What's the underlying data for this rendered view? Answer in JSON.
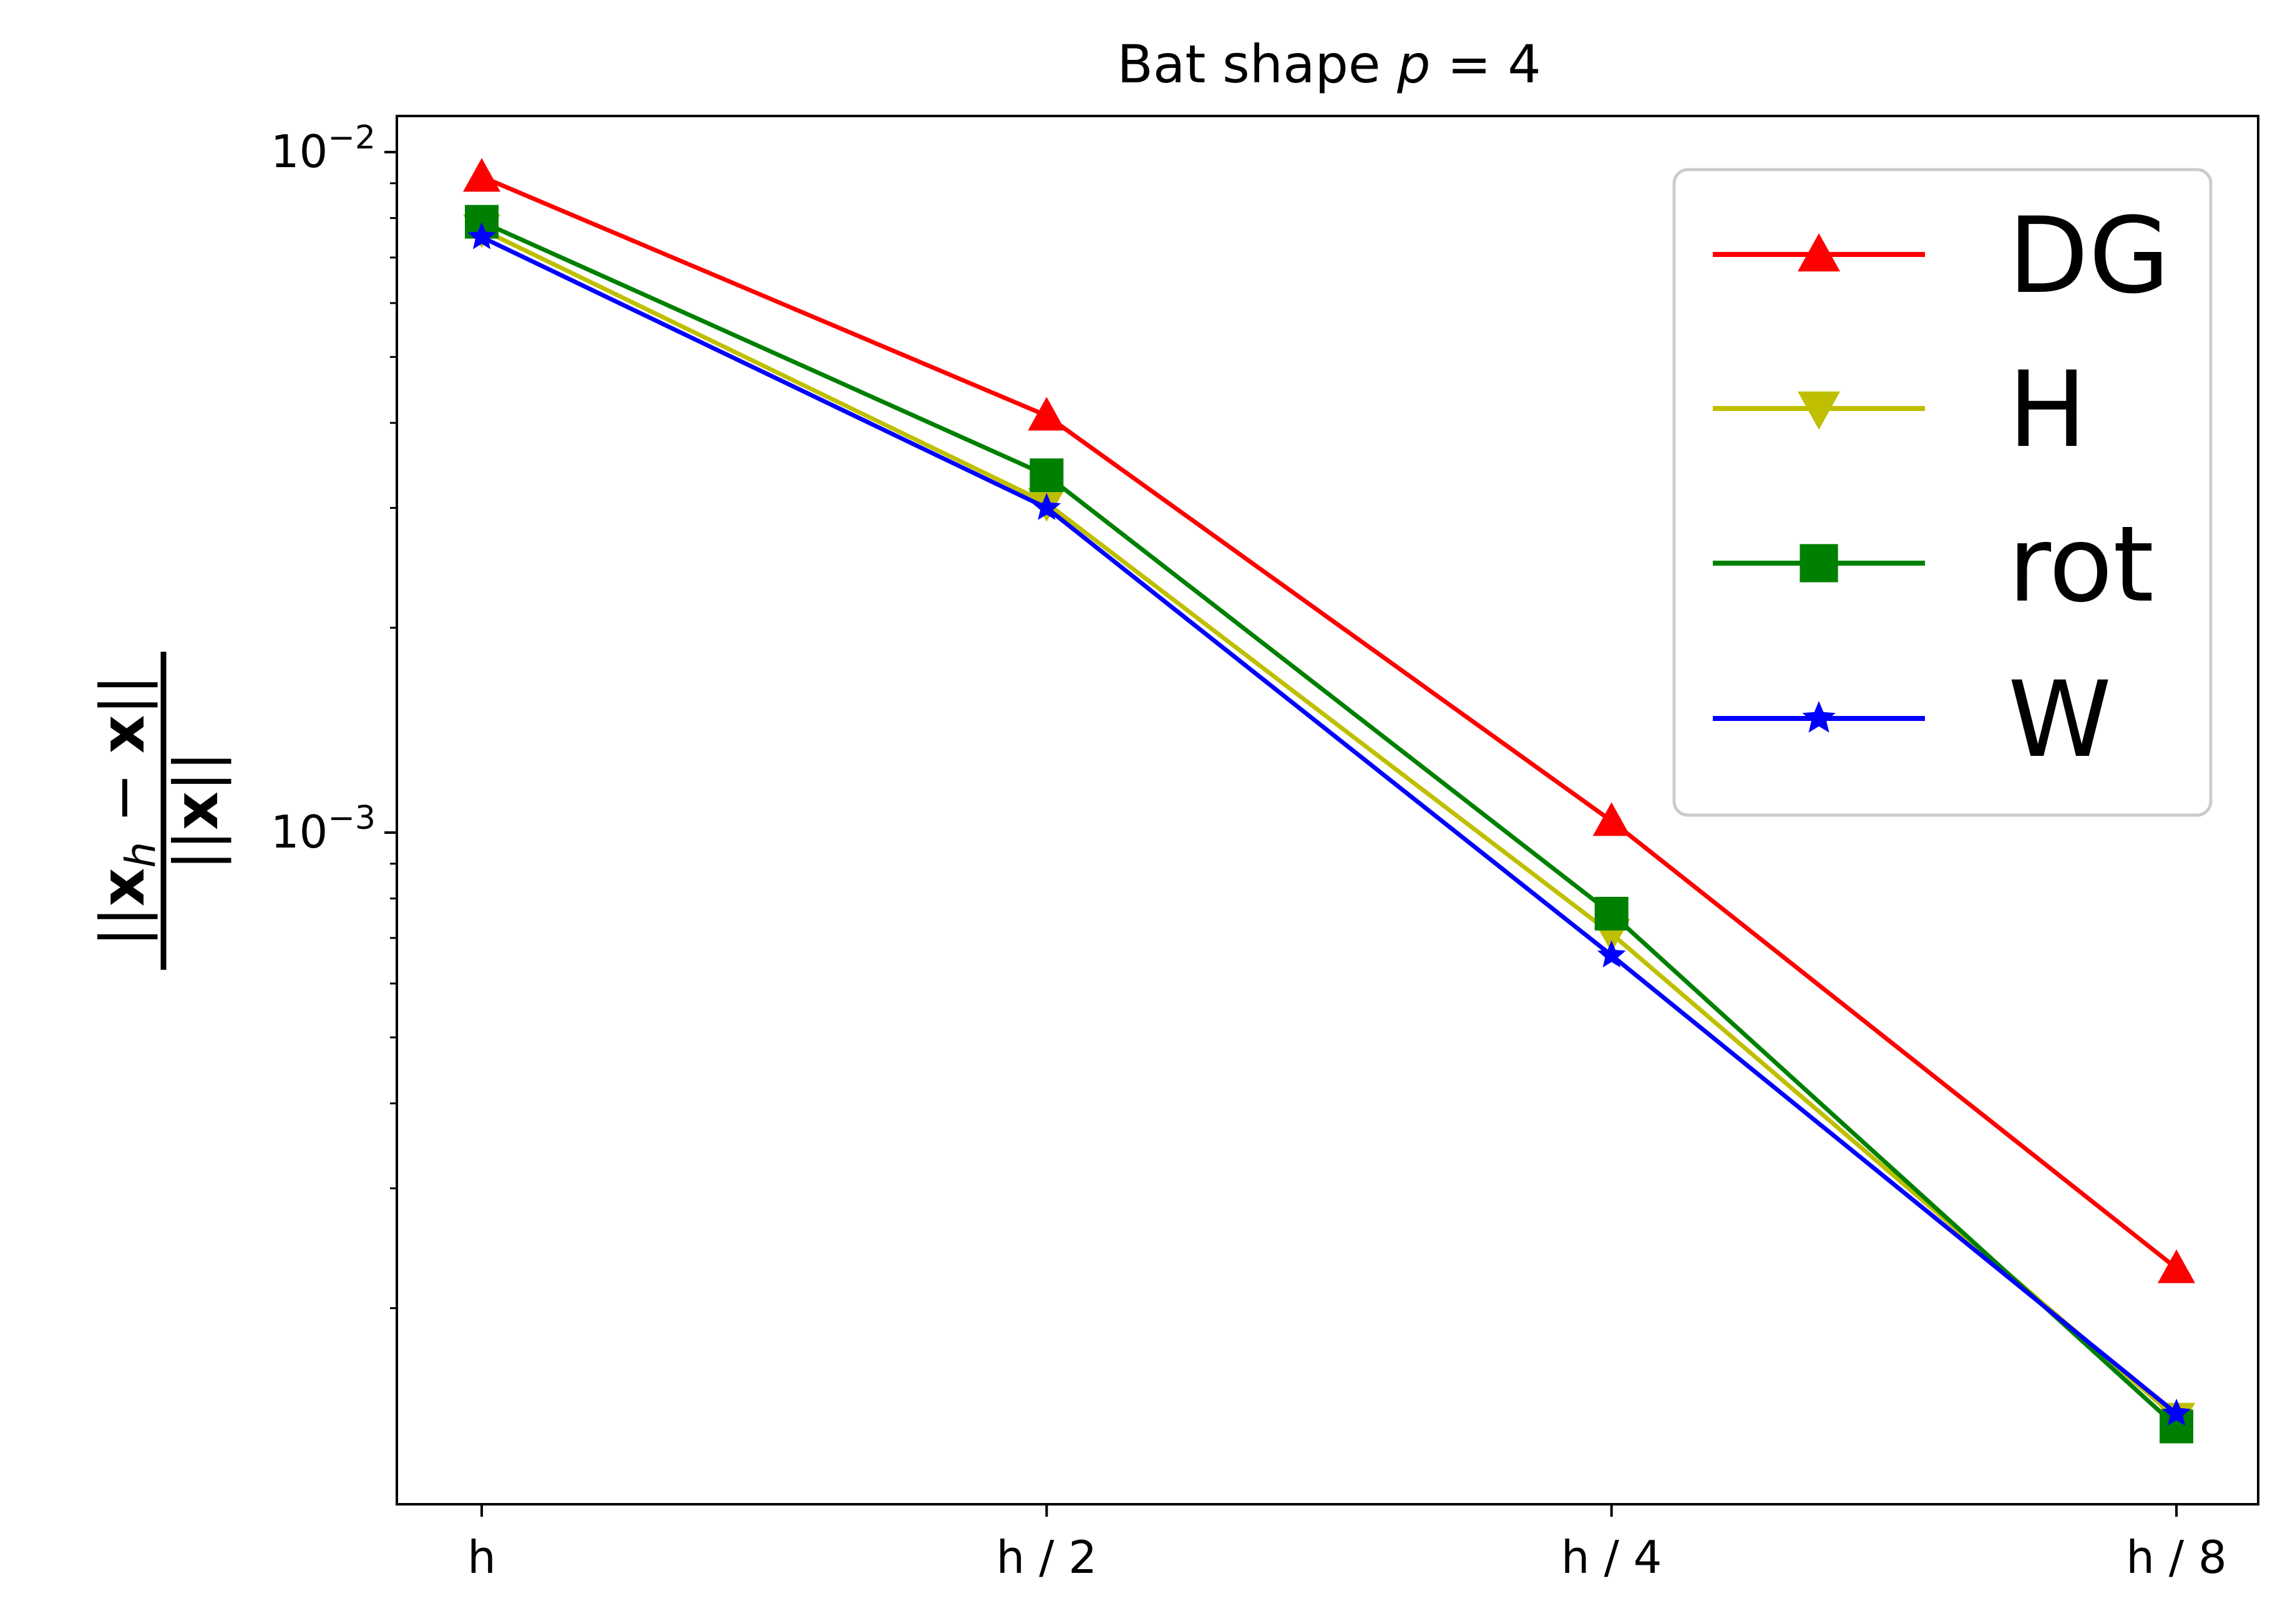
{
  "chart_data": {
    "type": "line",
    "title": "Bat shape p = 4",
    "title_parts": {
      "text": "Bat shape ",
      "var": "p",
      "rest": " = 4"
    },
    "ylabel": "||x_h − x|| / ||x||",
    "ylabel_parts": {
      "num_a": "||",
      "num_x": "x",
      "num_sub": "h",
      "num_b": " − ",
      "num_x2": "x",
      "num_c": "||",
      "den_a": "||",
      "den_x": "x",
      "den_b": "||"
    },
    "categories": [
      "h",
      "h / 2",
      "h / 4",
      "h / 8"
    ],
    "yscale": "log",
    "ylim": [
      0.000103,
      0.0113
    ],
    "ytick_labels": [
      {
        "base": "10",
        "exp": "−2",
        "value": 0.01
      },
      {
        "base": "10",
        "exp": "−3",
        "value": 0.001
      }
    ],
    "grid": false,
    "legend_position": "upper right",
    "series": [
      {
        "name": "DG",
        "color": "#ff0000",
        "marker": "triangle-up",
        "values": [
          0.0092,
          0.0041,
          0.00104,
          0.000229
        ]
      },
      {
        "name": "H",
        "color": "#bfbf00",
        "marker": "triangle-down",
        "values": [
          0.0077,
          0.00305,
          0.00071,
          0.000138
        ]
      },
      {
        "name": "rot",
        "color": "#008000",
        "marker": "square",
        "values": [
          0.0079,
          0.00335,
          0.00076,
          0.000134
        ]
      },
      {
        "name": "W",
        "color": "#0000ff",
        "marker": "star",
        "values": [
          0.0075,
          0.003,
          0.00066,
          0.00014
        ]
      }
    ]
  }
}
